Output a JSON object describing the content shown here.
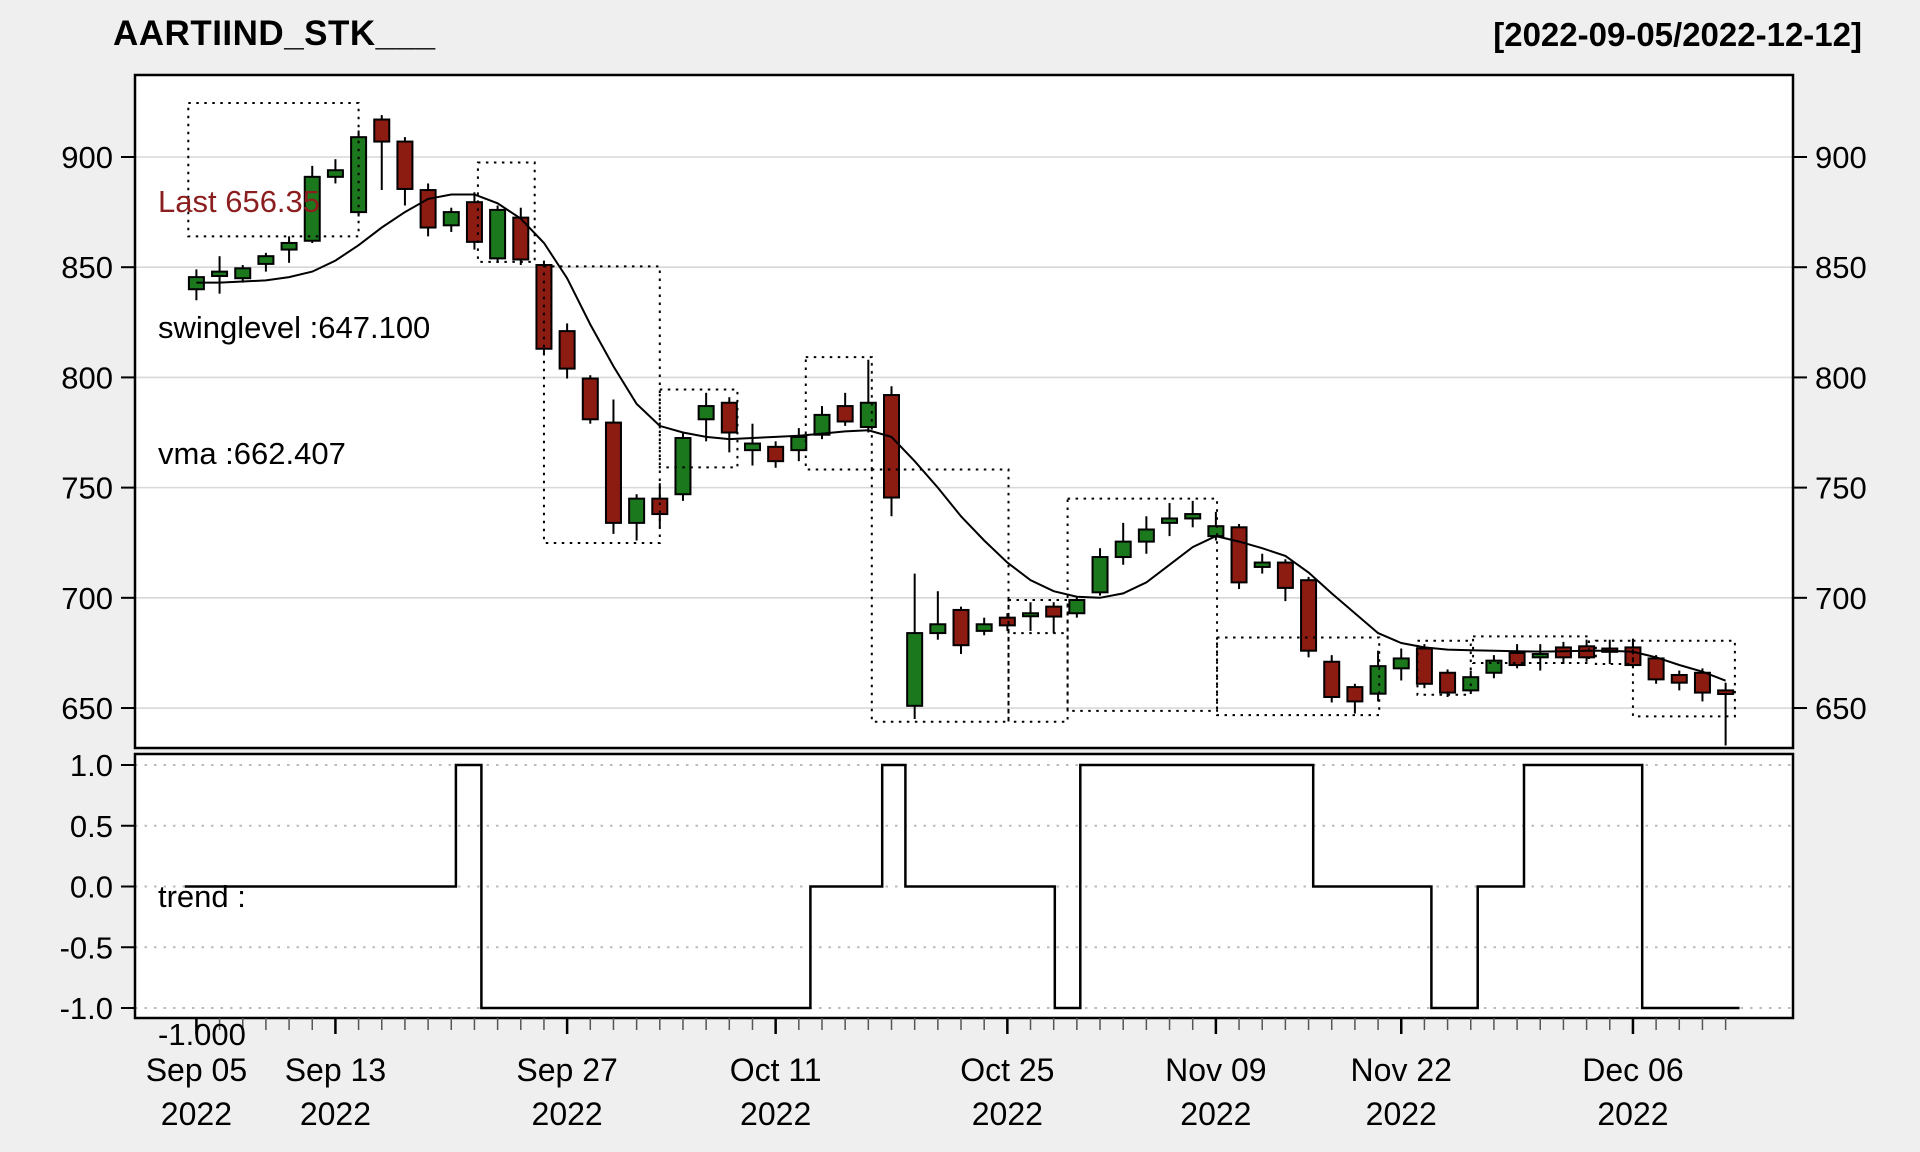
{
  "header": {
    "title": "AARTIIND_STK___",
    "date_range": "[2022-09-05/2022-12-12]"
  },
  "legend": {
    "last_label": "Last 656.35",
    "swinglevel_label": "swinglevel :647.100",
    "vma_label": "vma :662.407"
  },
  "trend_panel": {
    "label_line1": "trend :",
    "label_line2": "-1.000",
    "y_ticks": [
      "1.0",
      "0.5",
      "0.0",
      "-0.5",
      "-1.0"
    ],
    "y_values": [
      1,
      0.5,
      0,
      -0.5,
      -1
    ]
  },
  "colors": {
    "background": "#EFEFEF",
    "plot_bg": "#FFFFFF",
    "grid": "#D8D8D8",
    "trend_grid": "#BBBBBB",
    "up": "#1C781C",
    "down": "#8C1B12",
    "last_text": "#8B1E1E",
    "line": "#000000"
  },
  "chart_data": [
    {
      "type": "candlestick",
      "title": "AARTIIND_STK___",
      "xlabel": "",
      "ylabel": "",
      "ylim": [
        632,
        937
      ],
      "y_ticks": [
        900,
        850,
        800,
        750,
        700,
        650
      ],
      "x_labels": [
        {
          "index": 0,
          "line1": "Sep 05",
          "line2": "2022"
        },
        {
          "index": 6,
          "line1": "Sep 13",
          "line2": "2022"
        },
        {
          "index": 16,
          "line1": "Sep 27",
          "line2": "2022"
        },
        {
          "index": 25,
          "line1": "Oct 11",
          "line2": "2022"
        },
        {
          "index": 35,
          "line1": "Oct 25",
          "line2": "2022"
        },
        {
          "index": 44,
          "line1": "Nov 09",
          "line2": "2022"
        },
        {
          "index": 52,
          "line1": "Nov 22",
          "line2": "2022"
        },
        {
          "index": 62,
          "line1": "Dec 06",
          "line2": "2022"
        }
      ],
      "candles": [
        [
          "Sep 05",
          840,
          849,
          835,
          845.5
        ],
        [
          "Sep 06",
          846,
          855,
          838,
          848
        ],
        [
          "Sep 07",
          845,
          851,
          843,
          849.5
        ],
        [
          "Sep 08",
          851.5,
          856.5,
          848,
          855
        ],
        [
          "Sep 09",
          858,
          864,
          852,
          861
        ],
        [
          "Sep 12",
          862,
          896,
          861,
          891
        ],
        [
          "Sep 13",
          891,
          899,
          888,
          894
        ],
        [
          "Sep 14",
          875,
          912,
          873,
          909
        ],
        [
          "Sep 15",
          917,
          919,
          885,
          907
        ],
        [
          "Sep 16",
          907,
          909,
          878,
          885.5
        ],
        [
          "Sep 19",
          885,
          888,
          864,
          868
        ],
        [
          "Sep 20",
          869,
          877,
          866,
          875
        ],
        [
          "Sep 21",
          879.5,
          884,
          858,
          861.5
        ],
        [
          "Sep 22",
          854,
          878,
          852,
          876
        ],
        [
          "Sep 23",
          872.5,
          877,
          851,
          853.5
        ],
        [
          "Sep 26",
          851,
          853,
          810,
          813
        ],
        [
          "Sep 27",
          821,
          824.5,
          799.5,
          804
        ],
        [
          "Sep 28",
          799.5,
          801,
          779,
          781
        ],
        [
          "Sep 29",
          779.5,
          790,
          729,
          734
        ],
        [
          "Sep 30",
          734,
          747,
          726,
          745
        ],
        [
          "Oct 03",
          745,
          752,
          732,
          738
        ],
        [
          "Oct 04",
          747,
          775,
          744,
          772.5
        ],
        [
          "Oct 06",
          781,
          793,
          771,
          787
        ],
        [
          "Oct 07",
          788.5,
          791,
          766,
          775
        ],
        [
          "Oct 10",
          767,
          779,
          760,
          770
        ],
        [
          "Oct 11",
          768.5,
          771,
          759,
          762
        ],
        [
          "Oct 12",
          767,
          777,
          762,
          773
        ],
        [
          "Oct 13",
          774,
          787,
          772,
          783
        ],
        [
          "Oct 14",
          787,
          793,
          778,
          780
        ],
        [
          "Oct 17",
          777.5,
          808,
          775,
          788.5
        ],
        [
          "Oct 18",
          792,
          796,
          737,
          745.5
        ],
        [
          "Oct 19",
          651,
          711,
          645,
          684
        ],
        [
          "Oct 20",
          684,
          703,
          681,
          688
        ],
        [
          "Oct 21",
          694.5,
          696,
          674.5,
          678.5
        ],
        [
          "Oct 24",
          685,
          691,
          683,
          688
        ],
        [
          "Oct 25",
          691,
          693,
          685,
          687.5
        ],
        [
          "Oct 27",
          692,
          698,
          685,
          693
        ],
        [
          "Oct 28",
          696,
          698,
          684,
          691.5
        ],
        [
          "Oct 31",
          693,
          700.5,
          691,
          699
        ],
        [
          "Nov 01",
          702.5,
          722.5,
          701,
          718.5
        ],
        [
          "Nov 02",
          718.5,
          734,
          715,
          725.5
        ],
        [
          "Nov 03",
          725.5,
          737,
          720,
          731
        ],
        [
          "Nov 04",
          734,
          743,
          728,
          736
        ],
        [
          "Nov 07",
          736,
          744,
          732,
          738
        ],
        [
          "Nov 09",
          728,
          739,
          726,
          732.5
        ],
        [
          "Nov 10",
          732,
          733.5,
          704,
          707
        ],
        [
          "Nov 11",
          714,
          720,
          711,
          716
        ],
        [
          "Nov 15",
          716,
          717.5,
          698.5,
          704.5
        ],
        [
          "Nov 16",
          708,
          709.5,
          673,
          676
        ],
        [
          "Nov 17",
          671,
          674,
          652.5,
          655
        ],
        [
          "Nov 18",
          659.5,
          661,
          647.5,
          653
        ],
        [
          "Nov 21",
          656.5,
          676,
          653,
          669
        ],
        [
          "Nov 22",
          668,
          677,
          662.5,
          672.5
        ],
        [
          "Nov 23",
          677,
          679,
          659,
          661
        ],
        [
          "Nov 24",
          666,
          667.5,
          655,
          657
        ],
        [
          "Nov 25",
          658,
          667,
          657,
          664
        ],
        [
          "Nov 28",
          666,
          674,
          663.5,
          671.5
        ],
        [
          "Nov 29",
          675,
          679,
          668,
          669.5
        ],
        [
          "Nov 30",
          673,
          679,
          667,
          674.5
        ],
        [
          "Dec 01",
          677.5,
          680,
          670,
          673
        ],
        [
          "Dec 02",
          678,
          681,
          671,
          673
        ],
        [
          "Dec 05",
          677,
          681,
          670,
          675.5
        ],
        [
          "Dec 06",
          677.5,
          681.5,
          668,
          669.5
        ],
        [
          "Dec 07",
          672.5,
          674,
          661,
          663
        ],
        [
          "Dec 08",
          665,
          667,
          658,
          661.5
        ],
        [
          "Dec 09",
          666,
          668,
          653,
          657
        ],
        [
          "Dec 12",
          658,
          661.5,
          633,
          656.35
        ]
      ],
      "vma": [
        843,
        843,
        843.5,
        844,
        845.5,
        848,
        853,
        860,
        868,
        875,
        881,
        883,
        883,
        879,
        872,
        861,
        845,
        824,
        805,
        788,
        778,
        775,
        773,
        772,
        772.5,
        773,
        773.5,
        774.5,
        775.5,
        776,
        773,
        762,
        750,
        737,
        726,
        716,
        708,
        703,
        700.5,
        700,
        702,
        707,
        715,
        723,
        728,
        725.5,
        722.5,
        719,
        711.5,
        702,
        693,
        684,
        679.5,
        677.5,
        676.5,
        676.2,
        676,
        675.8,
        675.6,
        675.8,
        676,
        676,
        675.5,
        673,
        669.5,
        666.5,
        662.4
      ],
      "last_value": 656.35,
      "swinglevel_value": 647.1,
      "vma_value": 662.407,
      "swing_boxes": [
        {
          "i0": -0.35,
          "i1": 7.0,
          "p0": 864,
          "p1": 924.5
        },
        {
          "i0": 12.15,
          "i1": 14.6,
          "p0": 852.4,
          "p1": 897.5
        },
        {
          "i0": 15.0,
          "i1": 20.0,
          "p0": 724.9,
          "p1": 850.4
        },
        {
          "i0": 20.0,
          "i1": 23.35,
          "p0": 759.2,
          "p1": 794.5
        },
        {
          "i0": 26.3,
          "i1": 29.15,
          "p0": 758.2,
          "p1": 809.2
        },
        {
          "i0": 29.15,
          "i1": 35.05,
          "p0": 643.8,
          "p1": 758.2
        },
        {
          "i0": 35.05,
          "i1": 37.6,
          "p0": 643.8,
          "p1": 699
        },
        {
          "i0": 35.05,
          "i1": 37.6,
          "p0": 684,
          "p1": 699
        },
        {
          "i0": 37.6,
          "i1": 44.05,
          "p0": 648.7,
          "p1": 745
        },
        {
          "i0": 44.05,
          "i1": 51.05,
          "p0": 646.8,
          "p1": 682
        },
        {
          "i0": 52.7,
          "i1": 55.0,
          "p0": 656,
          "p1": 680.5
        },
        {
          "i0": 55.1,
          "i1": 60.1,
          "p0": 670.4,
          "p1": 682.5
        },
        {
          "i0": 60.4,
          "i1": 62.0,
          "p0": 670,
          "p1": 680.5
        },
        {
          "i0": 62.0,
          "i1": 66.4,
          "p0": 646.2,
          "p1": 680.5
        }
      ]
    },
    {
      "type": "line",
      "name": "trend",
      "ylim": [
        -1.08,
        1.08
      ],
      "final_value": -1.0,
      "segments": [
        {
          "start": -0.5,
          "end": 11.2,
          "value": 0
        },
        {
          "start": 11.2,
          "end": 12.3,
          "value": 1
        },
        {
          "start": 12.3,
          "end": 26.5,
          "value": -1
        },
        {
          "start": 26.5,
          "end": 29.6,
          "value": 0
        },
        {
          "start": 29.6,
          "end": 30.6,
          "value": 1
        },
        {
          "start": 30.6,
          "end": 37.05,
          "value": 0
        },
        {
          "start": 37.05,
          "end": 38.15,
          "value": -1
        },
        {
          "start": 38.15,
          "end": 48.2,
          "value": 1
        },
        {
          "start": 48.2,
          "end": 53.3,
          "value": 0
        },
        {
          "start": 53.3,
          "end": 55.3,
          "value": -1
        },
        {
          "start": 55.3,
          "end": 57.3,
          "value": 0
        },
        {
          "start": 57.3,
          "end": 62.4,
          "value": 1
        },
        {
          "start": 62.4,
          "end": 66.6,
          "value": -1
        }
      ]
    }
  ]
}
